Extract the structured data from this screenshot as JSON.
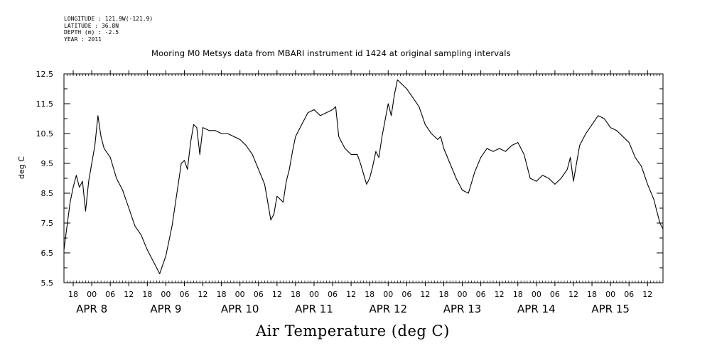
{
  "metadata": {
    "longitude": "LONGITUDE : 121.9W(-121.9)",
    "latitude": "LATITUDE : 36.8N",
    "depth": "DEPTH (m) : -2.5",
    "year": "YEAR : 2011"
  },
  "plot_title": "Mooring M0 Metsys data from MBARI instrument id 1424 at original sampling intervals",
  "y_axis_label": "deg C",
  "x_axis_title": "Air Temperature (deg C)",
  "chart_data": {
    "type": "line",
    "title": "Mooring M0 Metsys data from MBARI instrument id 1424 at original sampling intervals",
    "xlabel": "Air Temperature (deg C)",
    "ylabel": "deg C",
    "ylim": [
      5.5,
      12.5
    ],
    "xlim": [
      "2011-04-07T15:00",
      "2011-04-15T17:00"
    ],
    "y_ticks": [
      "5.5",
      "6.5",
      "7.5",
      "8.5",
      "9.5",
      "10.5",
      "11.5",
      "12.5"
    ],
    "x_hour_ticks": [
      {
        "x": "2011-04-07T18:00",
        "label": "18"
      },
      {
        "x": "2011-04-08T00:00",
        "label": "00"
      },
      {
        "x": "2011-04-08T06:00",
        "label": "06"
      },
      {
        "x": "2011-04-08T12:00",
        "label": "12"
      },
      {
        "x": "2011-04-08T18:00",
        "label": "18"
      },
      {
        "x": "2011-04-09T00:00",
        "label": "00"
      },
      {
        "x": "2011-04-09T06:00",
        "label": "06"
      },
      {
        "x": "2011-04-09T12:00",
        "label": "12"
      },
      {
        "x": "2011-04-09T18:00",
        "label": "18"
      },
      {
        "x": "2011-04-10T00:00",
        "label": "00"
      },
      {
        "x": "2011-04-10T06:00",
        "label": "06"
      },
      {
        "x": "2011-04-10T12:00",
        "label": "12"
      },
      {
        "x": "2011-04-10T18:00",
        "label": "18"
      },
      {
        "x": "2011-04-11T00:00",
        "label": "00"
      },
      {
        "x": "2011-04-11T06:00",
        "label": "06"
      },
      {
        "x": "2011-04-11T12:00",
        "label": "12"
      },
      {
        "x": "2011-04-11T18:00",
        "label": "18"
      },
      {
        "x": "2011-04-12T00:00",
        "label": "00"
      },
      {
        "x": "2011-04-12T06:00",
        "label": "06"
      },
      {
        "x": "2011-04-12T12:00",
        "label": "12"
      },
      {
        "x": "2011-04-12T18:00",
        "label": "18"
      },
      {
        "x": "2011-04-13T00:00",
        "label": "00"
      },
      {
        "x": "2011-04-13T06:00",
        "label": "06"
      },
      {
        "x": "2011-04-13T12:00",
        "label": "12"
      },
      {
        "x": "2011-04-13T18:00",
        "label": "18"
      },
      {
        "x": "2011-04-14T00:00",
        "label": "00"
      },
      {
        "x": "2011-04-14T06:00",
        "label": "06"
      },
      {
        "x": "2011-04-14T12:00",
        "label": "12"
      },
      {
        "x": "2011-04-14T18:00",
        "label": "18"
      },
      {
        "x": "2011-04-15T00:00",
        "label": "00"
      },
      {
        "x": "2011-04-15T06:00",
        "label": "06"
      },
      {
        "x": "2011-04-15T12:00",
        "label": "12"
      }
    ],
    "x_day_labels": [
      {
        "x": "2011-04-08T00:00",
        "label": "APR  8"
      },
      {
        "x": "2011-04-09T00:00",
        "label": "APR  9"
      },
      {
        "x": "2011-04-10T00:00",
        "label": "APR 10"
      },
      {
        "x": "2011-04-11T00:00",
        "label": "APR 11"
      },
      {
        "x": "2011-04-12T00:00",
        "label": "APR 12"
      },
      {
        "x": "2011-04-13T00:00",
        "label": "APR 13"
      },
      {
        "x": "2011-04-14T00:00",
        "label": "APR 14"
      },
      {
        "x": "2011-04-15T00:00",
        "label": "APR 15"
      }
    ],
    "series": [
      {
        "points": [
          [
            "2011-04-07T15:00",
            6.6
          ],
          [
            "2011-04-07T16:00",
            7.4
          ],
          [
            "2011-04-07T17:00",
            8.2
          ],
          [
            "2011-04-07T18:00",
            8.7
          ],
          [
            "2011-04-07T19:00",
            9.1
          ],
          [
            "2011-04-07T20:00",
            8.7
          ],
          [
            "2011-04-07T21:00",
            8.9
          ],
          [
            "2011-04-07T22:00",
            7.9
          ],
          [
            "2011-04-07T23:00",
            8.9
          ],
          [
            "2011-04-08T00:00",
            9.5
          ],
          [
            "2011-04-08T01:00",
            10.1
          ],
          [
            "2011-04-08T02:00",
            11.1
          ],
          [
            "2011-04-08T03:00",
            10.4
          ],
          [
            "2011-04-08T04:00",
            10.0
          ],
          [
            "2011-04-08T06:00",
            9.7
          ],
          [
            "2011-04-08T08:00",
            9.0
          ],
          [
            "2011-04-08T10:00",
            8.6
          ],
          [
            "2011-04-08T12:00",
            8.0
          ],
          [
            "2011-04-08T14:00",
            7.4
          ],
          [
            "2011-04-08T16:00",
            7.1
          ],
          [
            "2011-04-08T18:00",
            6.6
          ],
          [
            "2011-04-08T20:00",
            6.2
          ],
          [
            "2011-04-08T21:00",
            6.0
          ],
          [
            "2011-04-08T22:00",
            5.8
          ],
          [
            "2011-04-09T00:00",
            6.4
          ],
          [
            "2011-04-09T02:00",
            7.4
          ],
          [
            "2011-04-09T04:00",
            8.8
          ],
          [
            "2011-04-09T05:00",
            9.5
          ],
          [
            "2011-04-09T06:00",
            9.6
          ],
          [
            "2011-04-09T07:00",
            9.3
          ],
          [
            "2011-04-09T08:00",
            10.2
          ],
          [
            "2011-04-09T09:00",
            10.8
          ],
          [
            "2011-04-09T10:00",
            10.7
          ],
          [
            "2011-04-09T11:00",
            9.8
          ],
          [
            "2011-04-09T12:00",
            10.7
          ],
          [
            "2011-04-09T14:00",
            10.6
          ],
          [
            "2011-04-09T16:00",
            10.6
          ],
          [
            "2011-04-09T18:00",
            10.5
          ],
          [
            "2011-04-09T20:00",
            10.5
          ],
          [
            "2011-04-10T00:00",
            10.3
          ],
          [
            "2011-04-10T02:00",
            10.1
          ],
          [
            "2011-04-10T04:00",
            9.8
          ],
          [
            "2011-04-10T06:00",
            9.3
          ],
          [
            "2011-04-10T08:00",
            8.8
          ],
          [
            "2011-04-10T09:00",
            8.2
          ],
          [
            "2011-04-10T10:00",
            7.6
          ],
          [
            "2011-04-10T11:00",
            7.8
          ],
          [
            "2011-04-10T12:00",
            8.4
          ],
          [
            "2011-04-10T14:00",
            8.2
          ],
          [
            "2011-04-10T15:00",
            8.9
          ],
          [
            "2011-04-10T16:00",
            9.3
          ],
          [
            "2011-04-10T17:00",
            9.9
          ],
          [
            "2011-04-10T18:00",
            10.4
          ],
          [
            "2011-04-10T20:00",
            10.8
          ],
          [
            "2011-04-10T22:00",
            11.2
          ],
          [
            "2011-04-11T00:00",
            11.3
          ],
          [
            "2011-04-11T02:00",
            11.1
          ],
          [
            "2011-04-11T04:00",
            11.2
          ],
          [
            "2011-04-11T06:00",
            11.3
          ],
          [
            "2011-04-11T07:00",
            11.4
          ],
          [
            "2011-04-11T08:00",
            10.4
          ],
          [
            "2011-04-11T10:00",
            10.0
          ],
          [
            "2011-04-11T12:00",
            9.8
          ],
          [
            "2011-04-11T14:00",
            9.8
          ],
          [
            "2011-04-11T15:00",
            9.5
          ],
          [
            "2011-04-11T17:00",
            8.8
          ],
          [
            "2011-04-11T18:00",
            9.0
          ],
          [
            "2011-04-11T19:00",
            9.4
          ],
          [
            "2011-04-11T20:00",
            9.9
          ],
          [
            "2011-04-11T21:00",
            9.7
          ],
          [
            "2011-04-11T22:00",
            10.4
          ],
          [
            "2011-04-12T00:00",
            11.5
          ],
          [
            "2011-04-12T01:00",
            11.1
          ],
          [
            "2011-04-12T02:00",
            11.8
          ],
          [
            "2011-04-12T03:00",
            12.3
          ],
          [
            "2011-04-12T04:00",
            12.2
          ],
          [
            "2011-04-12T06:00",
            12.0
          ],
          [
            "2011-04-12T08:00",
            11.7
          ],
          [
            "2011-04-12T10:00",
            11.4
          ],
          [
            "2011-04-12T12:00",
            10.8
          ],
          [
            "2011-04-12T14:00",
            10.5
          ],
          [
            "2011-04-12T16:00",
            10.3
          ],
          [
            "2011-04-12T17:00",
            10.4
          ],
          [
            "2011-04-12T18:00",
            10.0
          ],
          [
            "2011-04-12T20:00",
            9.5
          ],
          [
            "2011-04-12T22:00",
            9.0
          ],
          [
            "2011-04-13T00:00",
            8.6
          ],
          [
            "2011-04-13T02:00",
            8.5
          ],
          [
            "2011-04-13T04:00",
            9.2
          ],
          [
            "2011-04-13T06:00",
            9.7
          ],
          [
            "2011-04-13T08:00",
            10.0
          ],
          [
            "2011-04-13T10:00",
            9.9
          ],
          [
            "2011-04-13T12:00",
            10.0
          ],
          [
            "2011-04-13T14:00",
            9.9
          ],
          [
            "2011-04-13T16:00",
            10.1
          ],
          [
            "2011-04-13T18:00",
            10.2
          ],
          [
            "2011-04-13T20:00",
            9.8
          ],
          [
            "2011-04-13T21:00",
            9.4
          ],
          [
            "2011-04-13T22:00",
            9.0
          ],
          [
            "2011-04-14T00:00",
            8.9
          ],
          [
            "2011-04-14T02:00",
            9.1
          ],
          [
            "2011-04-14T04:00",
            9.0
          ],
          [
            "2011-04-14T06:00",
            8.8
          ],
          [
            "2011-04-14T08:00",
            9.0
          ],
          [
            "2011-04-14T10:00",
            9.3
          ],
          [
            "2011-04-14T11:00",
            9.7
          ],
          [
            "2011-04-14T12:00",
            8.9
          ],
          [
            "2011-04-14T13:00",
            9.5
          ],
          [
            "2011-04-14T14:00",
            10.1
          ],
          [
            "2011-04-14T16:00",
            10.5
          ],
          [
            "2011-04-14T18:00",
            10.8
          ],
          [
            "2011-04-14T20:00",
            11.1
          ],
          [
            "2011-04-14T22:00",
            11.0
          ],
          [
            "2011-04-15T00:00",
            10.7
          ],
          [
            "2011-04-15T02:00",
            10.6
          ],
          [
            "2011-04-15T04:00",
            10.4
          ],
          [
            "2011-04-15T06:00",
            10.2
          ],
          [
            "2011-04-15T08:00",
            9.7
          ],
          [
            "2011-04-15T10:00",
            9.4
          ],
          [
            "2011-04-15T12:00",
            8.8
          ],
          [
            "2011-04-15T14:00",
            8.3
          ],
          [
            "2011-04-15T15:00",
            7.9
          ],
          [
            "2011-04-15T16:00",
            7.5
          ],
          [
            "2011-04-15T17:00",
            7.3
          ]
        ]
      }
    ],
    "grid": false,
    "line_color": "#000000"
  }
}
